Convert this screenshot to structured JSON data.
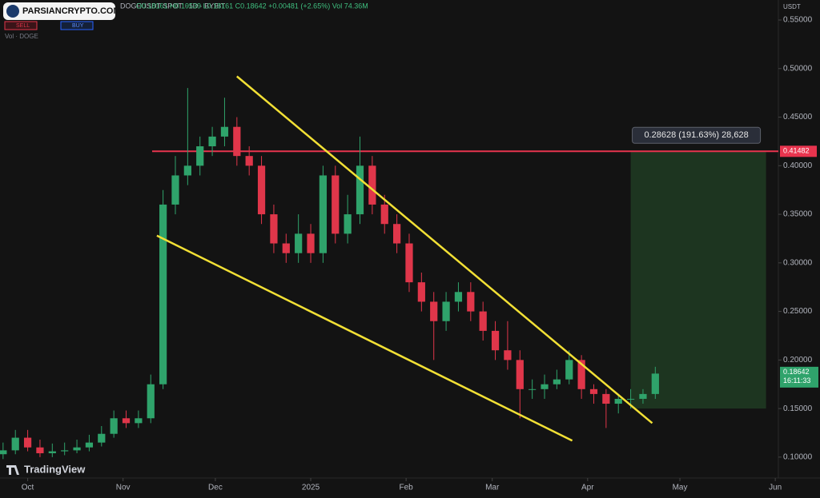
{
  "chart_data": {
    "type": "candlestick",
    "symbol": "DOGEUSDT SPOT · 1D · BYBIT",
    "ohlc_text": "O0.18161 H0.19539 L0.18161 C0.18642 +0.00481 (+2.65%) Vol 74.36M",
    "sell_label": "SELL",
    "buy_label": "BUY",
    "volume_label": "Vol · DOGE",
    "currency": "USDT",
    "brand": "TradingView",
    "watermark": "PARSIANCRYPTO.COM",
    "x": [
      -8,
      -4,
      0,
      4,
      8,
      12,
      16,
      20,
      24,
      28,
      32,
      36,
      40,
      44,
      48,
      52,
      56,
      60,
      64,
      68,
      72,
      76,
      80,
      84,
      88,
      92,
      96,
      100,
      104,
      108,
      112,
      116,
      120,
      124,
      128,
      132,
      136,
      140,
      144,
      148,
      152,
      156,
      160,
      164,
      168,
      172,
      176,
      180,
      184,
      188,
      192,
      196,
      200,
      204
    ],
    "open": [
      0.103,
      0.107,
      0.12,
      0.11,
      0.104,
      0.106,
      0.107,
      0.11,
      0.115,
      0.124,
      0.14,
      0.135,
      0.14,
      0.175,
      0.36,
      0.39,
      0.4,
      0.42,
      0.43,
      0.44,
      0.41,
      0.4,
      0.35,
      0.32,
      0.31,
      0.33,
      0.31,
      0.39,
      0.33,
      0.35,
      0.4,
      0.36,
      0.34,
      0.32,
      0.28,
      0.26,
      0.24,
      0.26,
      0.27,
      0.25,
      0.23,
      0.21,
      0.2,
      0.17,
      0.17,
      0.175,
      0.18,
      0.2,
      0.17,
      0.165,
      0.155,
      0.16,
      0.16,
      0.165
    ],
    "high": [
      0.115,
      0.128,
      0.128,
      0.118,
      0.114,
      0.115,
      0.118,
      0.123,
      0.132,
      0.148,
      0.148,
      0.148,
      0.185,
      0.375,
      0.41,
      0.48,
      0.43,
      0.44,
      0.47,
      0.45,
      0.42,
      0.41,
      0.36,
      0.33,
      0.35,
      0.34,
      0.4,
      0.4,
      0.37,
      0.43,
      0.41,
      0.37,
      0.35,
      0.33,
      0.29,
      0.27,
      0.27,
      0.28,
      0.28,
      0.26,
      0.24,
      0.24,
      0.21,
      0.18,
      0.185,
      0.19,
      0.21,
      0.205,
      0.175,
      0.17,
      0.165,
      0.17,
      0.17,
      0.193
    ],
    "low": [
      0.098,
      0.103,
      0.106,
      0.1,
      0.1,
      0.102,
      0.104,
      0.106,
      0.111,
      0.12,
      0.13,
      0.13,
      0.135,
      0.17,
      0.35,
      0.38,
      0.39,
      0.41,
      0.42,
      0.4,
      0.39,
      0.34,
      0.31,
      0.3,
      0.3,
      0.3,
      0.3,
      0.32,
      0.32,
      0.34,
      0.35,
      0.33,
      0.31,
      0.27,
      0.25,
      0.2,
      0.23,
      0.25,
      0.24,
      0.22,
      0.2,
      0.19,
      0.14,
      0.16,
      0.16,
      0.17,
      0.175,
      0.16,
      0.155,
      0.13,
      0.145,
      0.15,
      0.155,
      0.16
    ],
    "close": [
      0.107,
      0.12,
      0.11,
      0.104,
      0.106,
      0.107,
      0.11,
      0.115,
      0.124,
      0.14,
      0.135,
      0.14,
      0.175,
      0.36,
      0.39,
      0.4,
      0.42,
      0.43,
      0.44,
      0.41,
      0.4,
      0.35,
      0.32,
      0.31,
      0.33,
      0.31,
      0.39,
      0.33,
      0.35,
      0.4,
      0.36,
      0.34,
      0.32,
      0.28,
      0.26,
      0.24,
      0.26,
      0.27,
      0.25,
      0.23,
      0.21,
      0.2,
      0.17,
      0.17,
      0.175,
      0.18,
      0.2,
      0.17,
      0.165,
      0.155,
      0.16,
      0.16,
      0.165,
      0.186
    ],
    "up_color": "#2fa36b",
    "down_color": "#e0364a",
    "xlim": [
      -9,
      244
    ],
    "ylim": [
      0.0785,
      0.5706
    ],
    "xticks": [
      {
        "value": 0,
        "label": "Oct"
      },
      {
        "value": 31,
        "label": "Nov"
      },
      {
        "value": 61,
        "label": "Dec"
      },
      {
        "value": 92,
        "label": "2025"
      },
      {
        "value": 123,
        "label": "Feb"
      },
      {
        "value": 151,
        "label": "Mar"
      },
      {
        "value": 182,
        "label": "Apr"
      },
      {
        "value": 212,
        "label": "May"
      },
      {
        "value": 243,
        "label": "Jun"
      }
    ],
    "yticks": [
      {
        "value": 0.1,
        "label": "0.10000"
      },
      {
        "value": 0.15,
        "label": "0.15000"
      },
      {
        "value": 0.2,
        "label": "0.20000"
      },
      {
        "value": 0.25,
        "label": "0.25000"
      },
      {
        "value": 0.3,
        "label": "0.30000"
      },
      {
        "value": 0.35,
        "label": "0.35000"
      },
      {
        "value": 0.4,
        "label": "0.40000"
      },
      {
        "value": 0.45,
        "label": "0.45000"
      },
      {
        "value": 0.5,
        "label": "0.50000"
      },
      {
        "value": 0.55,
        "label": "0.55000"
      }
    ],
    "trendlines": [
      {
        "x": [
          68,
          203
        ],
        "y": [
          0.492,
          0.135
        ],
        "color": "#f2e035"
      },
      {
        "x": [
          42,
          177
        ],
        "y": [
          0.328,
          0.117
        ],
        "color": "#f2e035"
      }
    ],
    "level": {
      "value": 0.41482,
      "label": "0.41482",
      "color": "#e8344e"
    },
    "target_box": {
      "x": [
        196,
        240
      ],
      "y": [
        0.15,
        0.41482
      ],
      "color": "#1f3a22",
      "label": "0.28628 (191.63%) 28,628"
    },
    "last_price": {
      "value": 0.18642,
      "label": "0.18642",
      "countdown": "16:11:33",
      "color": "#2fa36b"
    }
  }
}
